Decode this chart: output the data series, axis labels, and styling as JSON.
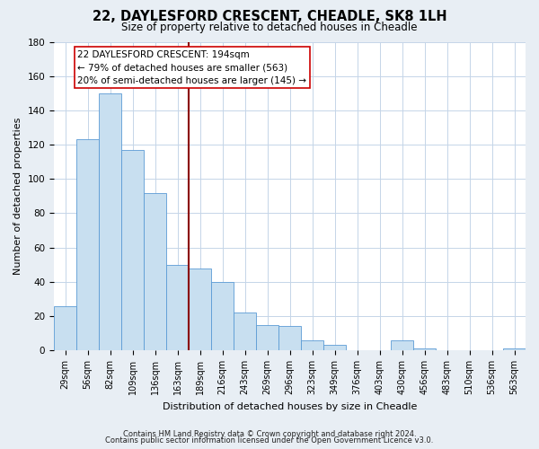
{
  "title": "22, DAYLESFORD CRESCENT, CHEADLE, SK8 1LH",
  "subtitle": "Size of property relative to detached houses in Cheadle",
  "xlabel": "Distribution of detached houses by size in Cheadle",
  "ylabel": "Number of detached properties",
  "bar_color": "#c8dff0",
  "bar_edge_color": "#5b9bd5",
  "categories": [
    "29sqm",
    "56sqm",
    "82sqm",
    "109sqm",
    "136sqm",
    "163sqm",
    "189sqm",
    "216sqm",
    "243sqm",
    "269sqm",
    "296sqm",
    "323sqm",
    "349sqm",
    "376sqm",
    "403sqm",
    "430sqm",
    "456sqm",
    "483sqm",
    "510sqm",
    "536sqm",
    "563sqm"
  ],
  "values": [
    26,
    123,
    150,
    117,
    92,
    50,
    48,
    40,
    22,
    15,
    14,
    6,
    3,
    0,
    0,
    6,
    1,
    0,
    0,
    0,
    1
  ],
  "ylim": [
    0,
    180
  ],
  "yticks": [
    0,
    20,
    40,
    60,
    80,
    100,
    120,
    140,
    160,
    180
  ],
  "annotation_line1": "22 DAYLESFORD CRESCENT: 194sqm",
  "annotation_line2": "← 79% of detached houses are smaller (563)",
  "annotation_line3": "20% of semi-detached houses are larger (145) →",
  "vline_color": "#8b0000",
  "box_edge_color": "#cc0000",
  "background_color": "#e8eef4",
  "plot_bg_color": "#ffffff",
  "grid_color": "#c5d5e8",
  "footer1": "Contains HM Land Registry data © Crown copyright and database right 2024.",
  "footer2": "Contains public sector information licensed under the Open Government Licence v3.0.",
  "title_fontsize": 10.5,
  "subtitle_fontsize": 8.5,
  "tick_fontsize": 7,
  "ylabel_fontsize": 8,
  "xlabel_fontsize": 8,
  "footer_fontsize": 6,
  "ann_fontsize": 7.5
}
